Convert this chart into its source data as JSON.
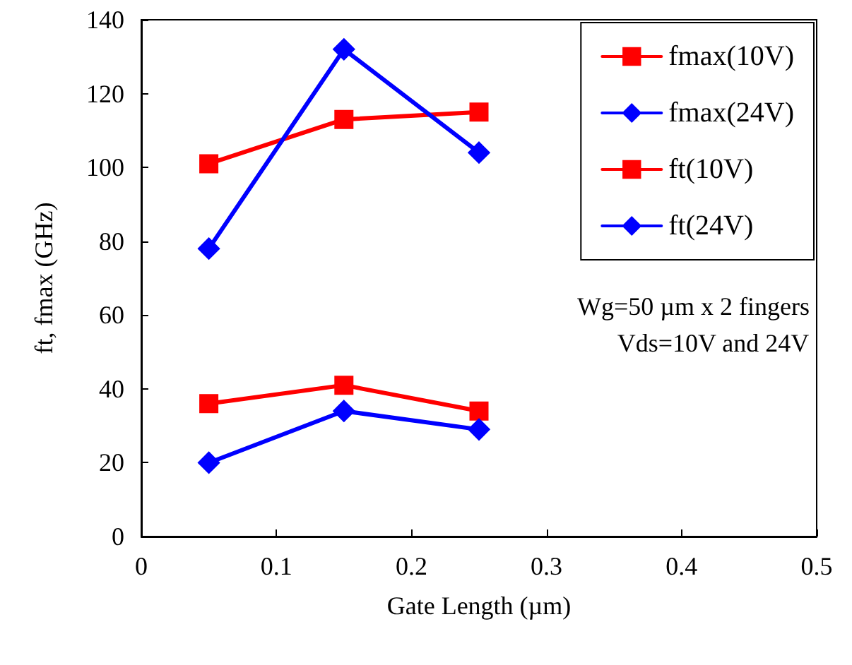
{
  "chart_data": {
    "type": "line",
    "xlabel": "Gate Length (µm)",
    "ylabel": "ft, fmax (GHz)",
    "x": [
      0.05,
      0.15,
      0.25
    ],
    "series": [
      {
        "name": "fmax(10V)",
        "color": "#ff0000",
        "values": [
          101,
          113,
          115
        ],
        "marker": "square"
      },
      {
        "name": "fmax(24V)",
        "color": "#0000ff",
        "values": [
          78,
          132,
          104
        ],
        "marker": "diamond"
      },
      {
        "name": "ft(10V)",
        "color": "#ff0000",
        "values": [
          36,
          41,
          34
        ],
        "marker": "square"
      },
      {
        "name": "ft(24V)",
        "color": "#0000ff",
        "values": [
          20,
          34,
          29
        ],
        "marker": "diamond"
      }
    ],
    "xlim": [
      0,
      0.5
    ],
    "xticks": [
      0,
      0.1,
      0.2,
      0.3,
      0.4,
      0.5
    ],
    "ylim": [
      0,
      140
    ],
    "yticks": [
      0,
      20,
      40,
      60,
      80,
      100,
      120,
      140
    ],
    "grid": false,
    "legend": "top right",
    "line_style": "solid",
    "annotations": [
      "Wg=50 µm x 2 fingers",
      "Vds=10V and 24V"
    ]
  }
}
